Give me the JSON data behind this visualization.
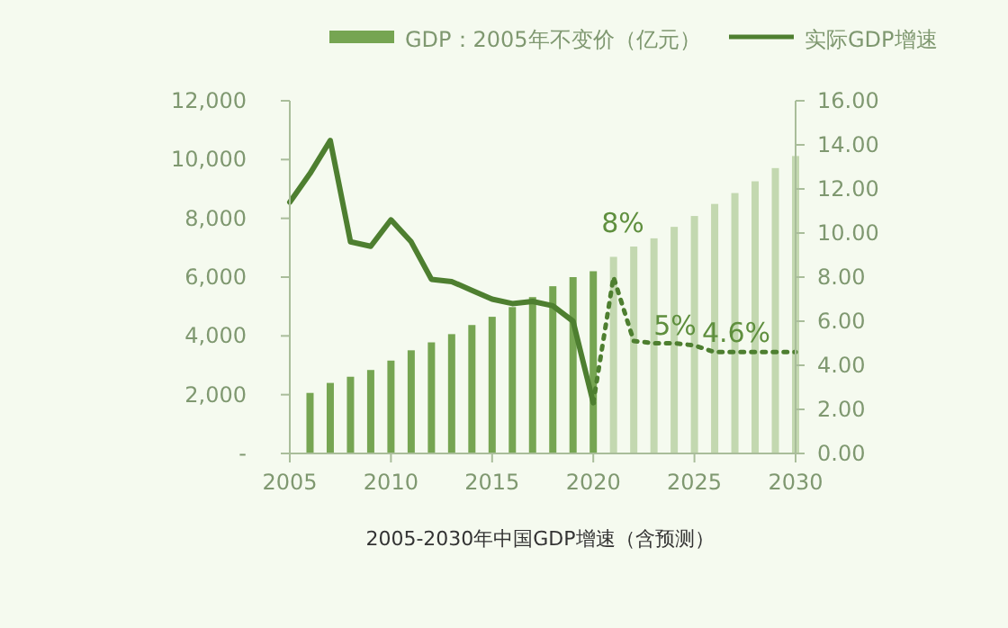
{
  "chart_data": {
    "type": "bar",
    "legend": "top right",
    "xlim": [
      2005,
      2030
    ],
    "xticks": [
      2005,
      2010,
      2015,
      2020,
      2025,
      2030
    ],
    "ylim": [
      0,
      12000
    ],
    "yticks": [
      {
        "value": 0,
        "label": "-"
      },
      {
        "value": 2000,
        "label": "2,000"
      },
      {
        "value": 4000,
        "label": "4,000"
      },
      {
        "value": 6000,
        "label": "6,000"
      },
      {
        "value": 8000,
        "label": "8,000"
      },
      {
        "value": 10000,
        "label": "10,000"
      },
      {
        "value": 12000,
        "label": "12,000"
      }
    ],
    "y2lim": [
      0,
      16
    ],
    "y2ticks": [
      {
        "value": 0,
        "label": "0.00"
      },
      {
        "value": 2,
        "label": "2.00"
      },
      {
        "value": 4,
        "label": "4.00"
      },
      {
        "value": 6,
        "label": "6.00"
      },
      {
        "value": 8,
        "label": "8.00"
      },
      {
        "value": 10,
        "label": "10.00"
      },
      {
        "value": 12,
        "label": "12.00"
      },
      {
        "value": 14,
        "label": "14.00"
      },
      {
        "value": 16,
        "label": "16.00"
      }
    ],
    "series": [
      {
        "name": "GDP：2005年不变价（亿元）",
        "color": "#76a552",
        "x": [
          2006,
          2007,
          2008,
          2009,
          2010,
          2011,
          2012,
          2013,
          2014,
          2015,
          2016,
          2017,
          2018,
          2019,
          2020
        ],
        "values": [
          2060,
          2400,
          2610,
          2840,
          3160,
          3510,
          3780,
          4060,
          4370,
          4650,
          4980,
          5320,
          5690,
          6000,
          6200
        ]
      },
      {
        "color": "#c3d8b0",
        "x": [
          2021,
          2022,
          2023,
          2024,
          2025,
          2026,
          2027,
          2028,
          2029,
          2030
        ],
        "values": [
          6690,
          7040,
          7320,
          7710,
          8080,
          8490,
          8860,
          9260,
          9710,
          10120
        ]
      },
      {
        "name": "实际GDP增速",
        "type": "line",
        "axis": "y2",
        "color": "#4e7f30",
        "line_style": "solid",
        "x": [
          2005,
          2006,
          2007,
          2008,
          2009,
          2010,
          2011,
          2012,
          2013,
          2014,
          2015,
          2016,
          2017,
          2018,
          2019,
          2020
        ],
        "values": [
          11.4,
          12.7,
          14.2,
          9.6,
          9.4,
          10.6,
          9.6,
          7.9,
          7.8,
          7.4,
          7.0,
          6.8,
          6.9,
          6.7,
          6.0,
          2.3
        ]
      },
      {
        "type": "line",
        "axis": "y2",
        "color": "#4e7f30",
        "line_style": "dotted",
        "x": [
          2020,
          2021,
          2022,
          2023,
          2024,
          2025,
          2026,
          2027,
          2028,
          2029,
          2030
        ],
        "values": [
          2.3,
          8.0,
          5.1,
          5.0,
          5.0,
          4.9,
          4.6,
          4.6,
          4.6,
          4.6,
          4.6
        ]
      }
    ],
    "annotations": [
      "8%",
      "5%",
      "4.6%",
      "2005-2030年中国GDP增速（含预测）"
    ]
  }
}
